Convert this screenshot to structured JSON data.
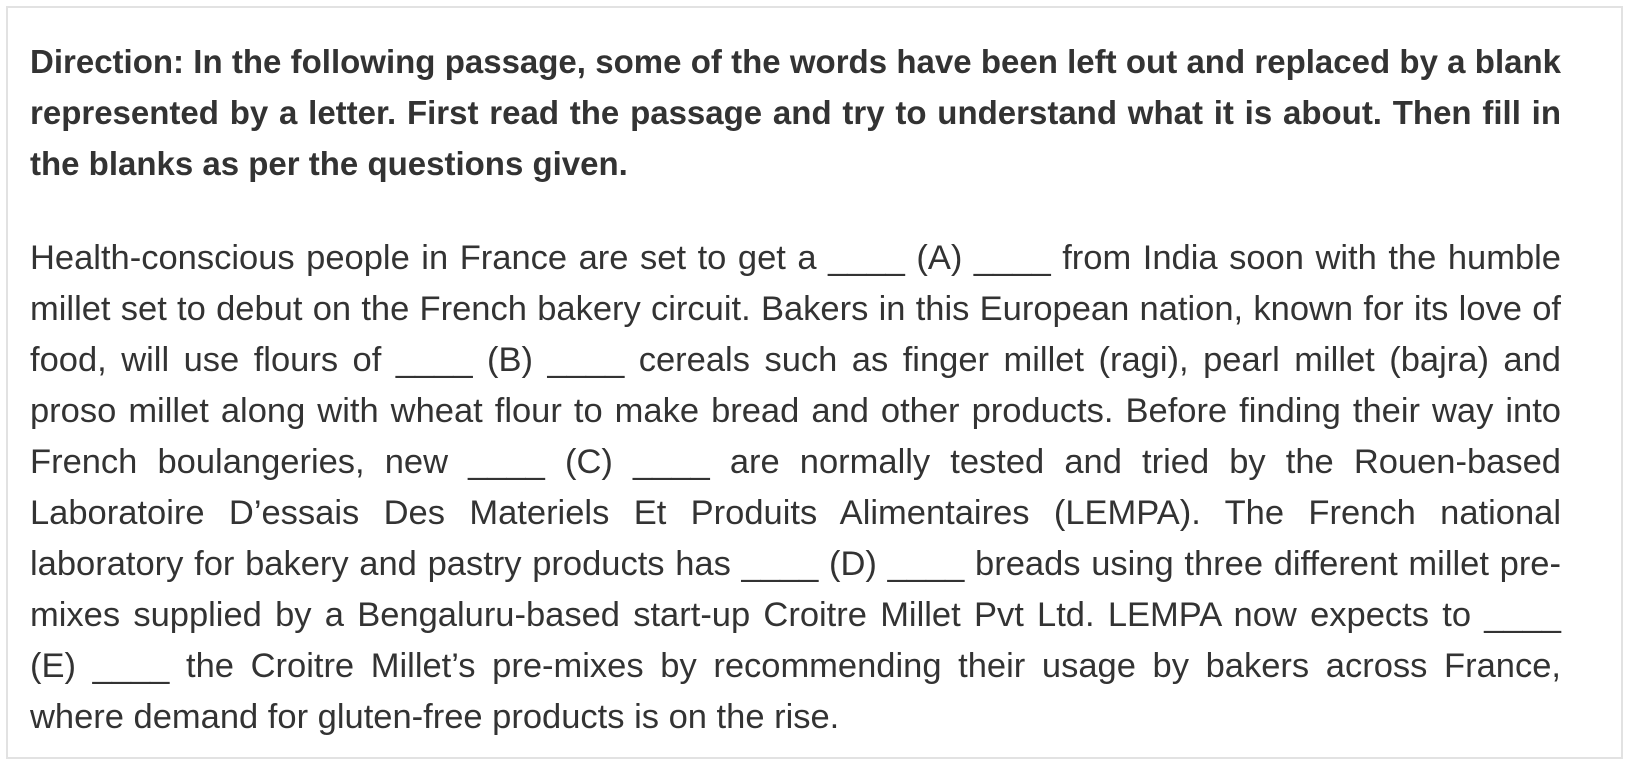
{
  "direction": "Direction: In the following passage, some of the words have been left out and replaced by a blank represented by a letter. First read the passage and try to understand what it is about. Then fill in the blanks as per the questions given.",
  "passage": "Health-conscious people in France are set to get a ____ (A) ____ from India soon with the humble millet set to debut on the French bakery circuit. Bakers in this European nation, known for its love of food, will use flours of ____ (B) ____ cereals such as finger millet (ragi), pearl millet (bajra) and proso millet along with wheat flour to make bread and other products. Before finding their way into French boulangeries, new ____ (C) ____ are normally tested and tried by the Rouen-based Laboratoire D’essais Des Materiels Et Produits Alimentaires (LEMPA). The French national laboratory for bakery and pastry products has ____ (D) ____ breads using three different millet pre-mixes supplied by a Bengaluru-based start-up Croitre Millet Pvt Ltd. LEMPA now expects to ____ (E) ____ the Croitre Millet’s pre-mixes by recommending their usage by bakers across France, where demand for gluten-free products is on the rise."
}
